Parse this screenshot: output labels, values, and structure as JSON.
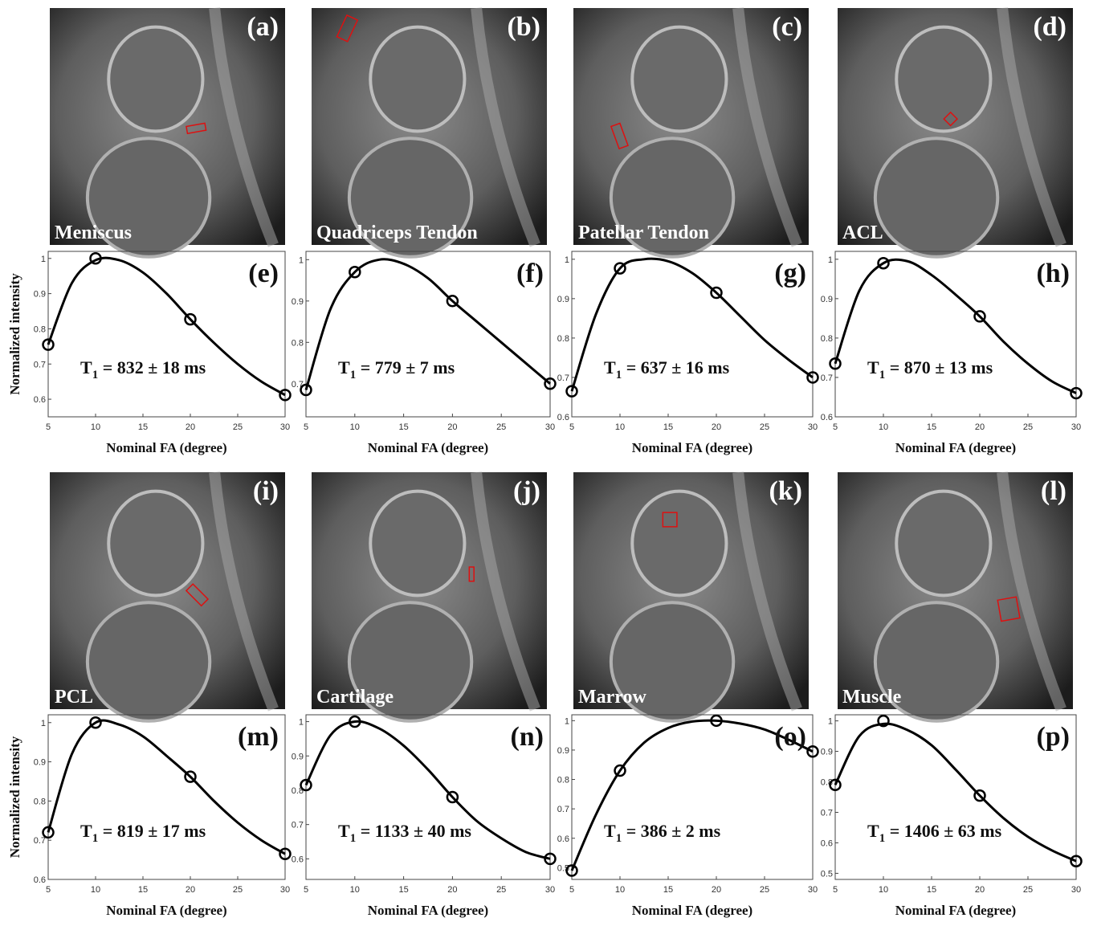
{
  "images": [
    {
      "label": "(a)",
      "title": "Meniscus"
    },
    {
      "label": "(b)",
      "title": "Quadriceps Tendon"
    },
    {
      "label": "(c)",
      "title": "Patellar Tendon"
    },
    {
      "label": "(d)",
      "title": "ACL"
    },
    {
      "label": "(i)",
      "title": "PCL"
    },
    {
      "label": "(j)",
      "title": "Cartilage"
    },
    {
      "label": "(k)",
      "title": "Marrow"
    },
    {
      "label": "(l)",
      "title": "Muscle"
    }
  ],
  "chart_data": [
    {
      "type": "line",
      "label": "(e)",
      "ylabel": "Normalized intensity",
      "xlabel": "Nominal FA (degree)",
      "annotation": {
        "symbol": "T",
        "subscript": "1",
        "text": " = 832 ± 18 ms"
      },
      "x": [
        5,
        10,
        20,
        30
      ],
      "values": [
        0.755,
        1.0,
        0.827,
        0.612
      ],
      "fit_x": [
        5,
        7.5,
        10,
        12.5,
        15,
        17.5,
        20,
        22.5,
        25,
        27.5,
        30
      ],
      "fit_values": [
        0.755,
        0.93,
        0.995,
        0.995,
        0.96,
        0.9,
        0.827,
        0.76,
        0.7,
        0.65,
        0.612
      ],
      "xlim": [
        5,
        30
      ],
      "xticks": [
        5,
        10,
        15,
        20,
        25,
        30
      ],
      "ylim": [
        0.55,
        1.02
      ],
      "yticks": [
        0.6,
        0.7,
        0.8,
        0.9,
        1
      ]
    },
    {
      "type": "line",
      "label": "(f)",
      "xlabel": "Nominal FA (degree)",
      "annotation": {
        "symbol": "T",
        "subscript": "1",
        "text": " = 779 ± 7 ms"
      },
      "x": [
        5,
        10,
        20,
        30
      ],
      "values": [
        0.685,
        0.97,
        0.9,
        0.7
      ],
      "fit_x": [
        5,
        7.5,
        10,
        12.5,
        15,
        17.5,
        20,
        22.5,
        25,
        27.5,
        30
      ],
      "fit_values": [
        0.685,
        0.88,
        0.97,
        1.0,
        0.99,
        0.955,
        0.9,
        0.85,
        0.8,
        0.75,
        0.7
      ],
      "xlim": [
        5,
        30
      ],
      "xticks": [
        5,
        10,
        15,
        20,
        25,
        30
      ],
      "ylim": [
        0.62,
        1.02
      ],
      "yticks": [
        0.7,
        0.8,
        0.9,
        1
      ]
    },
    {
      "type": "line",
      "label": "(g)",
      "xlabel": "Nominal FA (degree)",
      "annotation": {
        "symbol": "T",
        "subscript": "1",
        "text": " = 637 ± 16 ms"
      },
      "x": [
        5,
        10,
        20,
        30
      ],
      "values": [
        0.665,
        0.977,
        0.915,
        0.7
      ],
      "fit_x": [
        5,
        7.5,
        10,
        12.5,
        15,
        17.5,
        20,
        22.5,
        25,
        27.5,
        30
      ],
      "fit_values": [
        0.665,
        0.86,
        0.977,
        1.0,
        0.995,
        0.965,
        0.915,
        0.855,
        0.795,
        0.745,
        0.7
      ],
      "xlim": [
        5,
        30
      ],
      "xticks": [
        5,
        10,
        15,
        20,
        25,
        30
      ],
      "ylim": [
        0.6,
        1.02
      ],
      "yticks": [
        0.6,
        0.7,
        0.8,
        0.9,
        1
      ]
    },
    {
      "type": "line",
      "label": "(h)",
      "xlabel": "Nominal FA (degree)",
      "annotation": {
        "symbol": "T",
        "subscript": "1",
        "text": " = 870 ± 13 ms"
      },
      "x": [
        5,
        10,
        20,
        30
      ],
      "values": [
        0.735,
        0.99,
        0.855,
        0.66
      ],
      "fit_x": [
        5,
        7.5,
        10,
        12.5,
        15,
        17.5,
        20,
        22.5,
        25,
        27.5,
        30
      ],
      "fit_values": [
        0.735,
        0.92,
        0.99,
        0.995,
        0.96,
        0.91,
        0.855,
        0.79,
        0.735,
        0.69,
        0.66
      ],
      "xlim": [
        5,
        30
      ],
      "xticks": [
        5,
        10,
        15,
        20,
        25,
        30
      ],
      "ylim": [
        0.6,
        1.02
      ],
      "yticks": [
        0.6,
        0.7,
        0.8,
        0.9,
        1
      ]
    },
    {
      "type": "line",
      "label": "(m)",
      "ylabel": "Normalized intensity",
      "xlabel": "Nominal FA (degree)",
      "annotation": {
        "symbol": "T",
        "subscript": "1",
        "text": " = 819 ± 17 ms"
      },
      "x": [
        5,
        10,
        20,
        30
      ],
      "values": [
        0.72,
        1.0,
        0.862,
        0.665
      ],
      "fit_x": [
        5,
        7.5,
        10,
        12.5,
        15,
        17.5,
        20,
        22.5,
        25,
        27.5,
        30
      ],
      "fit_values": [
        0.72,
        0.92,
        1.0,
        0.995,
        0.965,
        0.915,
        0.862,
        0.8,
        0.745,
        0.7,
        0.665
      ],
      "xlim": [
        5,
        30
      ],
      "xticks": [
        5,
        10,
        15,
        20,
        25,
        30
      ],
      "ylim": [
        0.6,
        1.02
      ],
      "yticks": [
        0.6,
        0.7,
        0.8,
        0.9,
        1
      ]
    },
    {
      "type": "line",
      "label": "(n)",
      "xlabel": "Nominal FA (degree)",
      "annotation": {
        "symbol": "T",
        "subscript": "1",
        "text": " = 1133 ± 40 ms"
      },
      "x": [
        5,
        10,
        20,
        30
      ],
      "values": [
        0.815,
        1.0,
        0.78,
        0.6
      ],
      "fit_x": [
        5,
        7.5,
        10,
        12.5,
        15,
        17.5,
        20,
        22.5,
        25,
        27.5,
        30
      ],
      "fit_values": [
        0.815,
        0.96,
        1.0,
        0.98,
        0.93,
        0.86,
        0.78,
        0.71,
        0.66,
        0.62,
        0.6
      ],
      "xlim": [
        5,
        30
      ],
      "xticks": [
        5,
        10,
        15,
        20,
        25,
        30
      ],
      "ylim": [
        0.54,
        1.02
      ],
      "yticks": [
        0.6,
        0.7,
        0.8,
        0.9,
        1
      ]
    },
    {
      "type": "line",
      "label": "(o)",
      "xlabel": "Nominal FA (degree)",
      "annotation": {
        "symbol": "T",
        "subscript": "1",
        "text": " = 386 ± 2 ms"
      },
      "x": [
        5,
        10,
        20,
        30
      ],
      "values": [
        0.49,
        0.83,
        1.0,
        0.895
      ],
      "fit_x": [
        5,
        7.5,
        10,
        12.5,
        15,
        17.5,
        20,
        22.5,
        25,
        27.5,
        30
      ],
      "fit_values": [
        0.49,
        0.68,
        0.83,
        0.925,
        0.975,
        0.997,
        1.0,
        0.99,
        0.97,
        0.935,
        0.895
      ],
      "xlim": [
        5,
        30
      ],
      "xticks": [
        5,
        10,
        15,
        20,
        25,
        30
      ],
      "ylim": [
        0.46,
        1.02
      ],
      "yticks": [
        0.5,
        0.6,
        0.7,
        0.8,
        0.9,
        1
      ]
    },
    {
      "type": "line",
      "label": "(p)",
      "xlabel": "Nominal FA (degree)",
      "annotation": {
        "symbol": "T",
        "subscript": "1",
        "text": " = 1406 ± 63 ms"
      },
      "x": [
        5,
        10,
        20,
        30
      ],
      "values": [
        0.79,
        1.0,
        0.755,
        0.54
      ],
      "fit_x": [
        5,
        7.5,
        10,
        12.5,
        15,
        17.5,
        20,
        22.5,
        25,
        27.5,
        30
      ],
      "fit_values": [
        0.79,
        0.95,
        0.99,
        0.97,
        0.92,
        0.84,
        0.755,
        0.68,
        0.62,
        0.575,
        0.54
      ],
      "xlim": [
        5,
        30
      ],
      "xticks": [
        5,
        10,
        15,
        20,
        25,
        30
      ],
      "ylim": [
        0.48,
        1.02
      ],
      "yticks": [
        0.5,
        0.6,
        0.7,
        0.8,
        0.9,
        1
      ]
    }
  ]
}
